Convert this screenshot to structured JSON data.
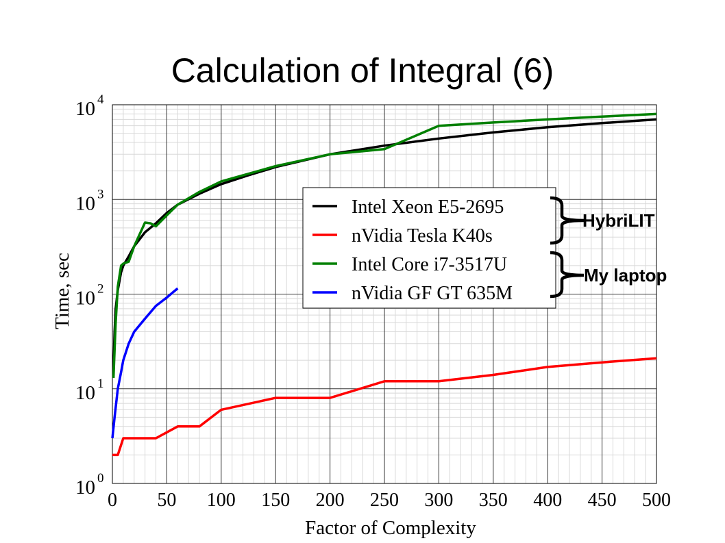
{
  "title": "Calculation of Integral (6)",
  "chart_data": {
    "type": "line",
    "xlabel": "Factor of Complexity",
    "ylabel": "Time, sec",
    "xlim": [
      0,
      500
    ],
    "ylim": [
      1,
      10000
    ],
    "yscale": "log",
    "grid": true,
    "legend_position": "center-right",
    "x_ticks": [
      0,
      50,
      100,
      150,
      200,
      250,
      300,
      350,
      400,
      450,
      500
    ],
    "y_ticks": [
      {
        "value": 1,
        "base": "10",
        "exp": "0"
      },
      {
        "value": 10,
        "base": "10",
        "exp": "1"
      },
      {
        "value": 100,
        "base": "10",
        "exp": "2"
      },
      {
        "value": 1000,
        "base": "10",
        "exp": "3"
      },
      {
        "value": 10000,
        "base": "10",
        "exp": "4"
      }
    ],
    "series": [
      {
        "name": "Intel Xeon E5-2695",
        "color": "#000000",
        "x": [
          1,
          2,
          3,
          5,
          8,
          10,
          15,
          20,
          30,
          40,
          50,
          60,
          80,
          100,
          125,
          150,
          200,
          250,
          300,
          350,
          400,
          450,
          500
        ],
        "y": [
          15,
          40,
          70,
          110,
          170,
          200,
          250,
          320,
          450,
          560,
          720,
          880,
          1150,
          1450,
          1800,
          2200,
          3000,
          3700,
          4400,
          5100,
          5800,
          6400,
          7000
        ]
      },
      {
        "name": "nVidia Tesla K40s",
        "color": "#ff0000",
        "x": [
          0,
          5,
          10,
          20,
          40,
          60,
          80,
          100,
          150,
          200,
          250,
          300,
          350,
          400,
          450,
          500
        ],
        "y": [
          2,
          2,
          3,
          3,
          3,
          4,
          4,
          6,
          8,
          8,
          12,
          12,
          14,
          17,
          19,
          21
        ]
      },
      {
        "name": "Intel Core i7-3517U",
        "color": "#008000",
        "x": [
          1,
          3,
          5,
          8,
          10,
          15,
          20,
          30,
          35,
          40,
          50,
          60,
          80,
          100,
          150,
          200,
          250,
          300,
          350,
          400,
          450,
          500
        ],
        "y": [
          13,
          50,
          120,
          200,
          210,
          220,
          320,
          570,
          560,
          520,
          680,
          880,
          1200,
          1550,
          2250,
          3000,
          3400,
          6000,
          6500,
          7000,
          7500,
          8000
        ]
      },
      {
        "name": "nVidia GF GT 635M",
        "color": "#0000ff",
        "x": [
          0,
          2,
          5,
          8,
          10,
          15,
          20,
          30,
          40,
          50,
          60
        ],
        "y": [
          3,
          5,
          10,
          15,
          20,
          30,
          40,
          55,
          75,
          92,
          115
        ]
      }
    ],
    "annotations": [
      {
        "label": "HybriLIT"
      },
      {
        "label": "My laptop"
      }
    ]
  }
}
